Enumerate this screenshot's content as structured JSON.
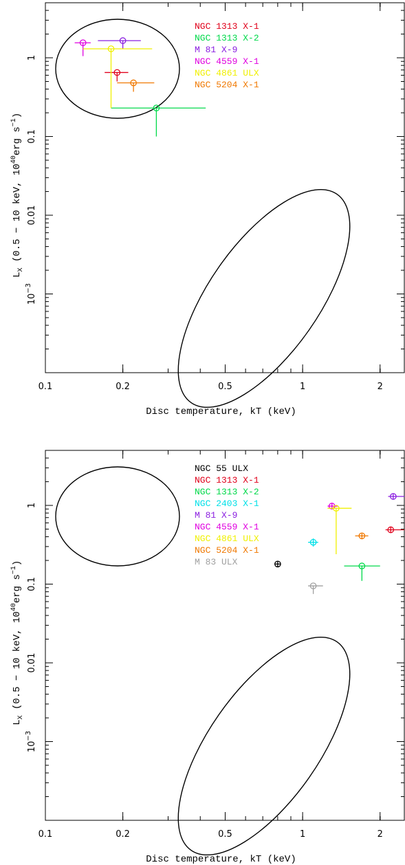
{
  "chart_data": [
    {
      "type": "scatter",
      "xscale": "log",
      "yscale": "log",
      "xlim": [
        0.1,
        2.5
      ],
      "ylim": [
        0.0001,
        5
      ],
      "xlabel": "Disc temperature, kT (keV)",
      "ylabel": "L_X (0.5 - 10 keV, 10^40 erg s^-1)",
      "xticks": [
        {
          "v": 0.1,
          "label": "0.1"
        },
        {
          "v": 0.2,
          "label": "0.2"
        },
        {
          "v": 0.5,
          "label": "0.5"
        },
        {
          "v": 1,
          "label": "1"
        },
        {
          "v": 2,
          "label": "2"
        }
      ],
      "yticks": [
        {
          "v": 1,
          "label": "1"
        },
        {
          "v": 0.1,
          "label": "0.1"
        },
        {
          "v": 0.01,
          "label": "0.01"
        },
        {
          "v": 0.001,
          "label": "10",
          "sup": "−3"
        }
      ],
      "ellipses": [
        {
          "name": "ellipse-upper-left",
          "cx": 0.19,
          "cy": 0.8
        },
        {
          "name": "ellipse-lower-right",
          "cx": 0.64,
          "cy": 0.0095
        }
      ],
      "series": [
        {
          "name": "NGC 1313 X-1",
          "color": "#e0001a",
          "x": 0.19,
          "y": 0.65,
          "xerr": [
            0.17,
            0.21
          ],
          "yerr": [
            0.5,
            0.65
          ]
        },
        {
          "name": "NGC 1313 X-2",
          "color": "#00d94a",
          "x": 0.27,
          "y": 0.23,
          "xerr": [
            0.18,
            0.42
          ],
          "yerr": [
            0.1,
            0.23
          ]
        },
        {
          "name": "M 81 X-9",
          "color": "#8a1ee0",
          "x": 0.2,
          "y": 1.65,
          "xerr": [
            0.16,
            0.235
          ],
          "yerr": [
            1.3,
            1.65
          ]
        },
        {
          "name": "NGC 4559 X-1",
          "color": "#e000e0",
          "x": 0.14,
          "y": 1.55,
          "xerr": [
            0.13,
            0.15
          ],
          "yerr": [
            1.05,
            1.55
          ]
        },
        {
          "name": "NGC 4861 ULX",
          "color": "#f0f000",
          "x": 0.18,
          "y": 1.3,
          "xerr": [
            0.14,
            0.26
          ],
          "yerr": [
            0.23,
            1.3
          ]
        },
        {
          "name": "NGC 5204 X-1",
          "color": "#f07800",
          "x": 0.22,
          "y": 0.48,
          "xerr": [
            0.19,
            0.265
          ],
          "yerr": [
            0.37,
            0.48
          ]
        }
      ]
    },
    {
      "type": "scatter",
      "xscale": "log",
      "yscale": "log",
      "xlim": [
        0.1,
        2.5
      ],
      "ylim": [
        0.0001,
        5
      ],
      "xlabel": "Disc temperature, kT (keV)",
      "ylabel": "L_X (0.5 - 10 keV, 10^40 erg s^-1)",
      "xticks": [
        {
          "v": 0.1,
          "label": "0.1"
        },
        {
          "v": 0.2,
          "label": "0.2"
        },
        {
          "v": 0.5,
          "label": "0.5"
        },
        {
          "v": 1,
          "label": "1"
        },
        {
          "v": 2,
          "label": "2"
        }
      ],
      "yticks": [
        {
          "v": 1,
          "label": "1"
        },
        {
          "v": 0.1,
          "label": "0.1"
        },
        {
          "v": 0.01,
          "label": "0.01"
        },
        {
          "v": 0.001,
          "label": "10",
          "sup": "−3"
        }
      ],
      "ellipses": [
        {
          "name": "ellipse-upper-left",
          "cx": 0.19,
          "cy": 0.8
        },
        {
          "name": "ellipse-lower-right",
          "cx": 0.64,
          "cy": 0.0095
        }
      ],
      "series": [
        {
          "name": "NGC 55 ULX",
          "color": "#000000",
          "x": 0.8,
          "y": 0.18,
          "xerr": [
            0.78,
            0.82
          ],
          "yerr": [
            0.165,
            0.195
          ]
        },
        {
          "name": "NGC 1313 X-1",
          "color": "#e0001a",
          "x": 2.2,
          "y": 0.49,
          "xerr": [
            2.1,
            2.5
          ],
          "yerr": [
            0.45,
            0.53
          ]
        },
        {
          "name": "NGC 1313 X-2",
          "color": "#00d94a",
          "x": 1.7,
          "y": 0.17,
          "xerr": [
            1.45,
            2.0
          ],
          "yerr": [
            0.11,
            0.17
          ]
        },
        {
          "name": "NGC 2403 X-1",
          "color": "#00e0e8",
          "x": 1.1,
          "y": 0.34,
          "xerr": [
            1.05,
            1.15
          ],
          "yerr": [
            0.3,
            0.38
          ]
        },
        {
          "name": "M 81 X-9",
          "color": "#8a1ee0",
          "x": 2.25,
          "y": 1.3,
          "xerr": [
            2.15,
            2.5
          ],
          "yerr": [
            1.2,
            1.4
          ]
        },
        {
          "name": "NGC 4559 X-1",
          "color": "#e000e0",
          "x": 1.3,
          "y": 0.98,
          "xerr": [
            1.25,
            1.37
          ],
          "yerr": [
            0.92,
            1.05
          ]
        },
        {
          "name": "NGC 4861 ULX",
          "color": "#f0f000",
          "x": 1.35,
          "y": 0.92,
          "xerr": [
            1.25,
            1.55
          ],
          "yerr": [
            0.24,
            0.92
          ]
        },
        {
          "name": "NGC 5204 X-1",
          "color": "#f07800",
          "x": 1.7,
          "y": 0.41,
          "xerr": [
            1.6,
            1.8
          ],
          "yerr": [
            0.38,
            0.44
          ]
        },
        {
          "name": "M 83 ULX",
          "color": "#a0a0a0",
          "x": 1.1,
          "y": 0.095,
          "xerr": [
            1.05,
            1.2
          ],
          "yerr": [
            0.075,
            0.095
          ]
        }
      ]
    }
  ]
}
